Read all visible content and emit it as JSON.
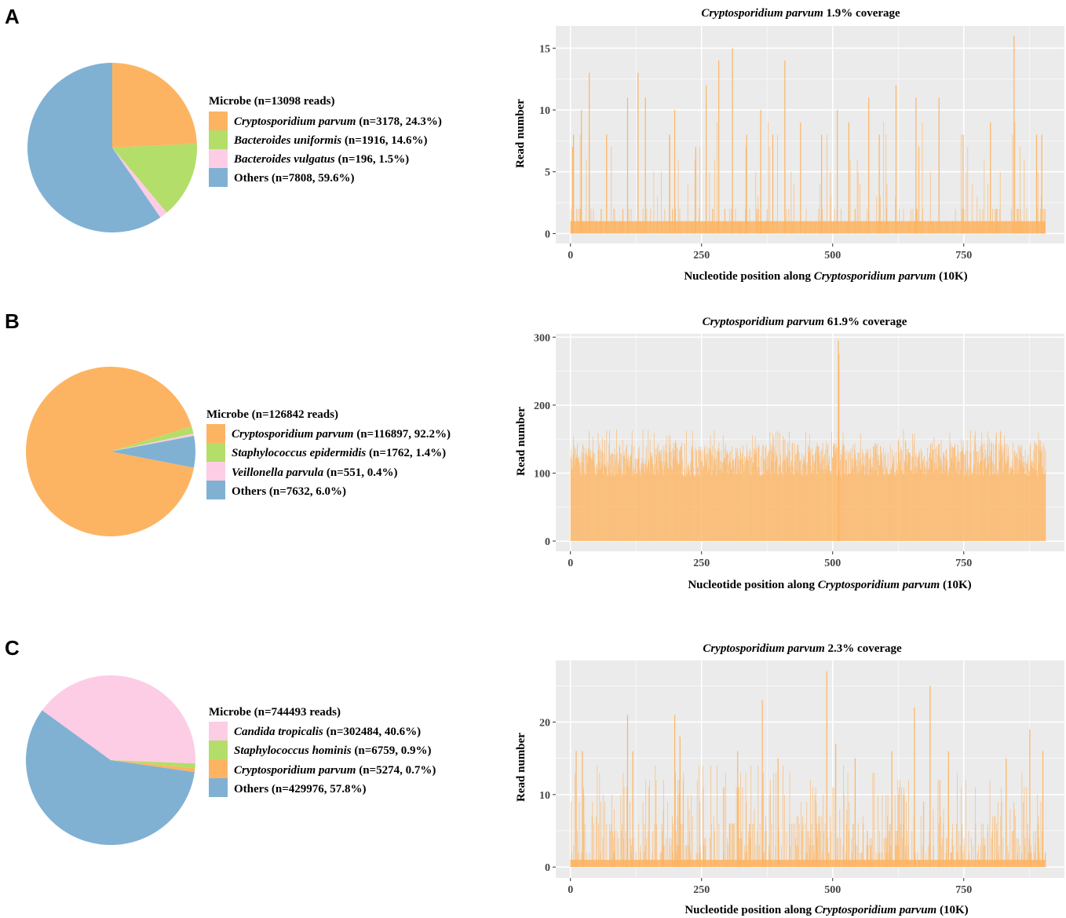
{
  "colors": {
    "orange": "#FDB462",
    "green": "#B3DE69",
    "pink": "#FCCDE5",
    "blue": "#80B1D3",
    "bar": "#FDB462",
    "panel_bg": "#EBEBEB",
    "grid": "#FFFFFF"
  },
  "chart_data": [
    {
      "id": "A-pie",
      "panel_label": "A",
      "type": "pie",
      "legend_title": "Microbe (n=13098 reads)",
      "slices": [
        {
          "name": "Cryptosporidium parvum",
          "italic": true,
          "stats": " (n=3178, 24.3%)",
          "n": 3178,
          "percent": 24.3,
          "color": "#FDB462"
        },
        {
          "name": "Bacteroides uniformis",
          "italic": true,
          "stats": " (n=1916, 14.6%)",
          "n": 1916,
          "percent": 14.6,
          "color": "#B3DE69"
        },
        {
          "name": "Bacteroides vulgatus",
          "italic": true,
          "stats": " (n=196, 1.5%)",
          "n": 196,
          "percent": 1.5,
          "color": "#FCCDE5"
        },
        {
          "name": "Others",
          "italic": false,
          "stats": " (n=7808, 59.6%)",
          "n": 7808,
          "percent": 59.6,
          "color": "#80B1D3"
        }
      ]
    },
    {
      "id": "A-coverage",
      "type": "bar",
      "title_species": "Cryptosporidium parvum",
      "title_suffix": " 1.9% coverage",
      "xlabel_prefix": "Nucleotide position along ",
      "xlabel_species": "Cryptosporidium parvum",
      "xlabel_suffix": " (10K)",
      "ylabel": "Read number",
      "xlim": [
        -28,
        942
      ],
      "ylim": [
        -0.8,
        16.8
      ],
      "x_ticks": [
        0,
        250,
        500,
        750
      ],
      "y_ticks": [
        0,
        5,
        10,
        15
      ],
      "x_max": 906,
      "profile": {
        "baseline": 0,
        "base_max": 2,
        "spike_chance": 0.22,
        "spike_max": 9,
        "density": 0.35
      },
      "peaks": [
        {
          "x": 3,
          "y": 7
        },
        {
          "x": 5,
          "y": 8
        },
        {
          "x": 20,
          "y": 10
        },
        {
          "x": 35,
          "y": 13
        },
        {
          "x": 68,
          "y": 8
        },
        {
          "x": 108,
          "y": 11
        },
        {
          "x": 128,
          "y": 13
        },
        {
          "x": 142,
          "y": 11
        },
        {
          "x": 188,
          "y": 8
        },
        {
          "x": 198,
          "y": 10
        },
        {
          "x": 238,
          "y": 7
        },
        {
          "x": 258,
          "y": 12
        },
        {
          "x": 282,
          "y": 14
        },
        {
          "x": 308,
          "y": 15
        },
        {
          "x": 335,
          "y": 8
        },
        {
          "x": 362,
          "y": 10
        },
        {
          "x": 385,
          "y": 8
        },
        {
          "x": 408,
          "y": 14
        },
        {
          "x": 438,
          "y": 9
        },
        {
          "x": 478,
          "y": 8
        },
        {
          "x": 508,
          "y": 10
        },
        {
          "x": 530,
          "y": 9
        },
        {
          "x": 568,
          "y": 11
        },
        {
          "x": 588,
          "y": 8
        },
        {
          "x": 620,
          "y": 12
        },
        {
          "x": 658,
          "y": 11
        },
        {
          "x": 702,
          "y": 11
        },
        {
          "x": 748,
          "y": 8
        },
        {
          "x": 800,
          "y": 9
        },
        {
          "x": 845,
          "y": 16
        },
        {
          "x": 888,
          "y": 8
        },
        {
          "x": 898,
          "y": 8
        }
      ],
      "seed": 11
    },
    {
      "id": "B-pie",
      "panel_label": "B",
      "type": "pie",
      "legend_title": "Microbe (n=126842 reads)",
      "slices": [
        {
          "name": "Cryptosporidium parvum",
          "italic": true,
          "stats": " (n=116897, 92.2%)",
          "n": 116897,
          "percent": 92.2,
          "color": "#FDB462"
        },
        {
          "name": "Staphylococcus epidermidis",
          "italic": true,
          "stats": " (n=1762, 1.4%)",
          "n": 1762,
          "percent": 1.4,
          "color": "#B3DE69"
        },
        {
          "name": "Veillonella parvula",
          "italic": true,
          "stats": " (n=551, 0.4%)",
          "n": 551,
          "percent": 0.4,
          "color": "#FCCDE5"
        },
        {
          "name": "Others",
          "italic": false,
          "stats": " (n=7632, 6.0%)",
          "n": 7632,
          "percent": 6.0,
          "color": "#80B1D3"
        }
      ]
    },
    {
      "id": "B-coverage",
      "type": "bar",
      "title_species": "Cryptosporidium parvum",
      "title_suffix": " 61.9% coverage",
      "xlabel_prefix": "Nucleotide position along ",
      "xlabel_species": "Cryptosporidium parvum",
      "xlabel_suffix": " (10K)",
      "ylabel": "Read number",
      "xlim": [
        -28,
        942
      ],
      "ylim": [
        -15,
        305
      ],
      "x_ticks": [
        0,
        250,
        500,
        750
      ],
      "y_ticks": [
        0,
        100,
        200,
        300
      ],
      "x_max": 906,
      "profile": {
        "baseline": 95,
        "base_max": 145,
        "spike_chance": 0.06,
        "spike_max": 165,
        "density": 1.0
      },
      "peaks": [
        {
          "x": 510,
          "y": 295
        },
        {
          "x": 511,
          "y": 275
        }
      ],
      "seed": 23
    },
    {
      "id": "C-pie",
      "panel_label": "C",
      "type": "pie",
      "legend_title": "Microbe (n=744493 reads)",
      "slices": [
        {
          "name": "Candida tropicalis",
          "italic": true,
          "stats": " (n=302484, 40.6%)",
          "n": 302484,
          "percent": 40.6,
          "color": "#FCCDE5"
        },
        {
          "name": "Staphylococcus hominis",
          "italic": true,
          "stats": " (n=6759, 0.9%)",
          "n": 6759,
          "percent": 0.9,
          "color": "#B3DE69"
        },
        {
          "name": "Cryptosporidium parvum",
          "italic": true,
          "stats": " (n=5274, 0.7%)",
          "n": 5274,
          "percent": 0.7,
          "color": "#FDB462"
        },
        {
          "name": "Others",
          "italic": false,
          "stats": " (n=429976, 57.8%)",
          "n": 429976,
          "percent": 57.8,
          "color": "#80B1D3"
        }
      ]
    },
    {
      "id": "C-coverage",
      "type": "bar",
      "title_species": "Cryptosporidium parvum",
      "title_suffix": " 2.3% coverage",
      "xlabel_prefix": "Nucleotide position along ",
      "xlabel_species": "Cryptosporidium parvum",
      "xlabel_suffix": " (10K)",
      "ylabel": "Read number",
      "xlim": [
        -28,
        942
      ],
      "ylim": [
        -1.5,
        28.5
      ],
      "x_ticks": [
        0,
        250,
        500,
        750
      ],
      "y_ticks": [
        0,
        10,
        20
      ],
      "x_max": 906,
      "profile": {
        "baseline": 0,
        "base_max": 7,
        "spike_chance": 0.25,
        "spike_max": 14,
        "density": 0.55
      },
      "peaks": [
        {
          "x": 10,
          "y": 16
        },
        {
          "x": 22,
          "y": 16
        },
        {
          "x": 108,
          "y": 21
        },
        {
          "x": 118,
          "y": 16
        },
        {
          "x": 198,
          "y": 21
        },
        {
          "x": 208,
          "y": 18
        },
        {
          "x": 318,
          "y": 16
        },
        {
          "x": 365,
          "y": 23
        },
        {
          "x": 395,
          "y": 15
        },
        {
          "x": 488,
          "y": 27
        },
        {
          "x": 505,
          "y": 17
        },
        {
          "x": 542,
          "y": 15
        },
        {
          "x": 612,
          "y": 16
        },
        {
          "x": 655,
          "y": 22
        },
        {
          "x": 685,
          "y": 25
        },
        {
          "x": 720,
          "y": 16
        },
        {
          "x": 830,
          "y": 15
        },
        {
          "x": 875,
          "y": 19
        },
        {
          "x": 900,
          "y": 16
        }
      ],
      "seed": 37
    }
  ]
}
